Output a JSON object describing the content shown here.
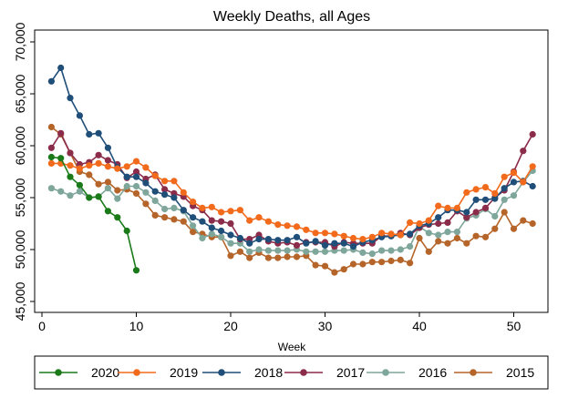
{
  "chart_data": {
    "type": "line",
    "title": "Weekly Deaths, all Ages",
    "xlabel": "Week",
    "ylabel": "",
    "xlim": [
      0,
      53
    ],
    "ylim": [
      45000,
      71000
    ],
    "xticks": [
      0,
      10,
      20,
      30,
      40,
      50
    ],
    "yticks": [
      45000,
      50000,
      55000,
      60000,
      65000,
      70000
    ],
    "xtick_labels": [
      "0",
      "10",
      "20",
      "30",
      "40",
      "50"
    ],
    "ytick_labels": [
      "45,000",
      "50,000",
      "55,000",
      "60,000",
      "65,000",
      "70,000"
    ],
    "grid": false,
    "legend_position": "bottom",
    "series": [
      {
        "name": "2020",
        "color": "#1a7a1a",
        "x": [
          1,
          2,
          3,
          4,
          5,
          6,
          7,
          8,
          9,
          10
        ],
        "values": [
          58900,
          58800,
          57000,
          56200,
          55000,
          55100,
          53700,
          53100,
          51800,
          48000
        ]
      },
      {
        "name": "2019",
        "color": "#f26a1b",
        "x": [
          1,
          2,
          3,
          4,
          5,
          6,
          7,
          8,
          9,
          10,
          11,
          12,
          13,
          14,
          15,
          16,
          17,
          18,
          19,
          20,
          21,
          22,
          23,
          24,
          25,
          26,
          27,
          28,
          29,
          30,
          31,
          32,
          33,
          34,
          35,
          36,
          37,
          38,
          39,
          40,
          41,
          42,
          43,
          44,
          45,
          46,
          47,
          48,
          49,
          50,
          51,
          52
        ],
        "values": [
          58300,
          58300,
          58100,
          57800,
          58100,
          58300,
          58000,
          57800,
          58000,
          58500,
          57900,
          57100,
          56600,
          56600,
          55500,
          54600,
          54000,
          54100,
          53600,
          53700,
          53800,
          52800,
          53100,
          52700,
          52400,
          52300,
          52200,
          51900,
          51600,
          51600,
          51500,
          51300,
          51100,
          51000,
          51200,
          51600,
          51500,
          51400,
          52600,
          52500,
          52800,
          54200,
          54000,
          54000,
          55500,
          55800,
          56000,
          55400,
          57000,
          57400,
          56500,
          58000
        ]
      },
      {
        "name": "2018",
        "color": "#1f4e79",
        "x": [
          1,
          2,
          3,
          4,
          5,
          6,
          7,
          8,
          9,
          10,
          11,
          12,
          13,
          14,
          15,
          16,
          17,
          18,
          19,
          20,
          21,
          22,
          23,
          24,
          25,
          26,
          27,
          28,
          29,
          30,
          31,
          32,
          33,
          34,
          35,
          36,
          37,
          38,
          39,
          40,
          41,
          42,
          43,
          44,
          45,
          46,
          47,
          48,
          49,
          50,
          51,
          52
        ],
        "values": [
          66200,
          67500,
          64600,
          62900,
          61100,
          61200,
          59800,
          57900,
          57000,
          57000,
          56400,
          55600,
          55300,
          55000,
          53800,
          53100,
          52700,
          52100,
          51800,
          51400,
          51100,
          50600,
          51000,
          51000,
          50900,
          50900,
          51200,
          50600,
          50800,
          50400,
          50600,
          50600,
          50300,
          50700,
          50900,
          51200,
          51300,
          51400,
          51500,
          52300,
          52500,
          53100,
          53800,
          53800,
          53600,
          54800,
          54800,
          54900,
          55900,
          56500,
          56600,
          56100
        ]
      },
      {
        "name": "2017",
        "color": "#8b2c4a",
        "x": [
          1,
          2,
          3,
          4,
          5,
          6,
          7,
          8,
          9,
          10,
          11,
          12,
          13,
          14,
          15,
          16,
          17,
          18,
          19,
          20,
          21,
          22,
          23,
          24,
          25,
          26,
          27,
          28,
          29,
          30,
          31,
          32,
          33,
          34,
          35,
          36,
          37,
          38,
          39,
          40,
          41,
          42,
          43,
          44,
          45,
          46,
          47,
          48,
          49,
          50,
          51,
          52
        ],
        "values": [
          59800,
          61200,
          59300,
          58200,
          58400,
          59100,
          58600,
          58200,
          56900,
          57500,
          56800,
          57200,
          55800,
          55400,
          55100,
          54200,
          53800,
          52800,
          52700,
          52500,
          51000,
          51000,
          51400,
          50800,
          50600,
          50700,
          50400,
          50700,
          50700,
          50700,
          50300,
          50700,
          50600,
          50600,
          50600,
          51300,
          51300,
          51600,
          51400,
          52100,
          52400,
          52500,
          52600,
          53700,
          53100,
          53600,
          54000,
          55000,
          55700,
          57500,
          59500,
          61100
        ]
      },
      {
        "name": "2016",
        "color": "#7ea69a",
        "x": [
          1,
          2,
          3,
          4,
          5,
          6,
          7,
          8,
          9,
          10,
          11,
          12,
          13,
          14,
          15,
          16,
          17,
          18,
          19,
          20,
          21,
          22,
          23,
          24,
          25,
          26,
          27,
          28,
          29,
          30,
          31,
          32,
          33,
          34,
          35,
          36,
          37,
          38,
          39,
          40,
          41,
          42,
          43,
          44,
          45,
          46,
          47,
          48,
          49,
          50,
          51,
          52
        ],
        "values": [
          55900,
          55600,
          55200,
          55600,
          55000,
          55100,
          55900,
          54900,
          56100,
          56100,
          55500,
          54700,
          53900,
          54000,
          53700,
          52300,
          51100,
          51500,
          51200,
          50600,
          50600,
          49800,
          50000,
          49900,
          49900,
          49900,
          50000,
          49800,
          49800,
          49800,
          49900,
          49900,
          50000,
          49700,
          49600,
          49900,
          49900,
          50000,
          50300,
          52200,
          51600,
          51400,
          51700,
          51700,
          53000,
          53300,
          53900,
          53200,
          54800,
          55200,
          56500,
          57600
        ]
      },
      {
        "name": "2015",
        "color": "#b5652a",
        "x": [
          1,
          2,
          3,
          4,
          5,
          6,
          7,
          8,
          9,
          10,
          11,
          12,
          13,
          14,
          15,
          16,
          17,
          18,
          19,
          20,
          21,
          22,
          23,
          24,
          25,
          26,
          27,
          28,
          29,
          30,
          31,
          32,
          33,
          34,
          35,
          36,
          37,
          38,
          39,
          40,
          41,
          42,
          43,
          44,
          45,
          46,
          47,
          48,
          49,
          50,
          51,
          52
        ],
        "values": [
          61800,
          61100,
          59300,
          57500,
          57200,
          56300,
          56500,
          55700,
          55800,
          55400,
          54400,
          53300,
          53100,
          52900,
          52700,
          51700,
          51500,
          51200,
          51200,
          49400,
          49800,
          49200,
          49700,
          49200,
          49200,
          49300,
          49300,
          49400,
          48500,
          48400,
          47800,
          48100,
          48600,
          48600,
          48800,
          48800,
          48900,
          49000,
          48700,
          51100,
          49800,
          50800,
          50600,
          51100,
          50600,
          51300,
          51200,
          52000,
          53600,
          52000,
          52800,
          52500
        ]
      }
    ]
  }
}
